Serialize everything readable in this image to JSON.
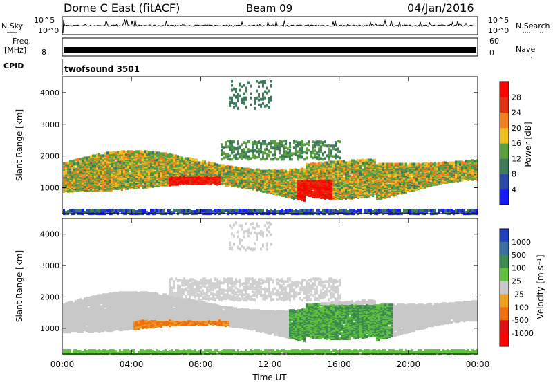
{
  "header": {
    "station": "Dome C East (fitACF)",
    "beam": "Beam 09",
    "date": "04/Jan/2016"
  },
  "noise_panel": {
    "left_label": "N.Sky",
    "right_label": "N.Search",
    "ticks": [
      "10^5",
      "10^0"
    ]
  },
  "freq_panel": {
    "left_label_1": "Freq.",
    "left_label_2": "[MHz]",
    "left_value": "8",
    "right_ticks": [
      "60",
      "0"
    ],
    "right_label": "Nave"
  },
  "cpid": {
    "label": "CPID",
    "value": "twofsound 3501"
  },
  "chart_data": [
    {
      "type": "heatmap",
      "title": "",
      "ylabel": "Slant Range [km]",
      "ylim": [
        180,
        4500
      ],
      "yticks": [
        "1000",
        "2000",
        "3000",
        "4000"
      ],
      "xlim": [
        "00:00",
        "24:00"
      ],
      "colorbar": {
        "label": "Power [dB]",
        "ticks": [
          "4",
          "8",
          "12",
          "16",
          "20",
          "24",
          "28"
        ],
        "colors": [
          "#1a1aff",
          "#2a47a8",
          "#3c7a5a",
          "#5aa040",
          "#f0c020",
          "#f08020",
          "#e03010",
          "#ff0000"
        ]
      },
      "grid": false
    },
    {
      "type": "heatmap",
      "title": "",
      "ylabel": "Slant Range [km]",
      "ylim": [
        180,
        4500
      ],
      "yticks": [
        "1000",
        "2000",
        "3000",
        "4000"
      ],
      "xlim": [
        "00:00",
        "24:00"
      ],
      "xlabel": "Time UT",
      "xticks": [
        "00:00",
        "04:00",
        "08:00",
        "12:00",
        "16:00",
        "20:00",
        "00:00"
      ],
      "colorbar": {
        "label": "Velocity [m s⁻¹]",
        "ticks": [
          "1000",
          "500",
          "100",
          "25",
          "-25",
          "-100",
          "-500",
          "-1000"
        ],
        "colors": [
          "#2040c0",
          "#3a6ea0",
          "#3c8a50",
          "#60c040",
          "#c8c8c8",
          "#f0a020",
          "#f07010",
          "#e01010",
          "#ff0000"
        ]
      },
      "grid": false
    }
  ]
}
